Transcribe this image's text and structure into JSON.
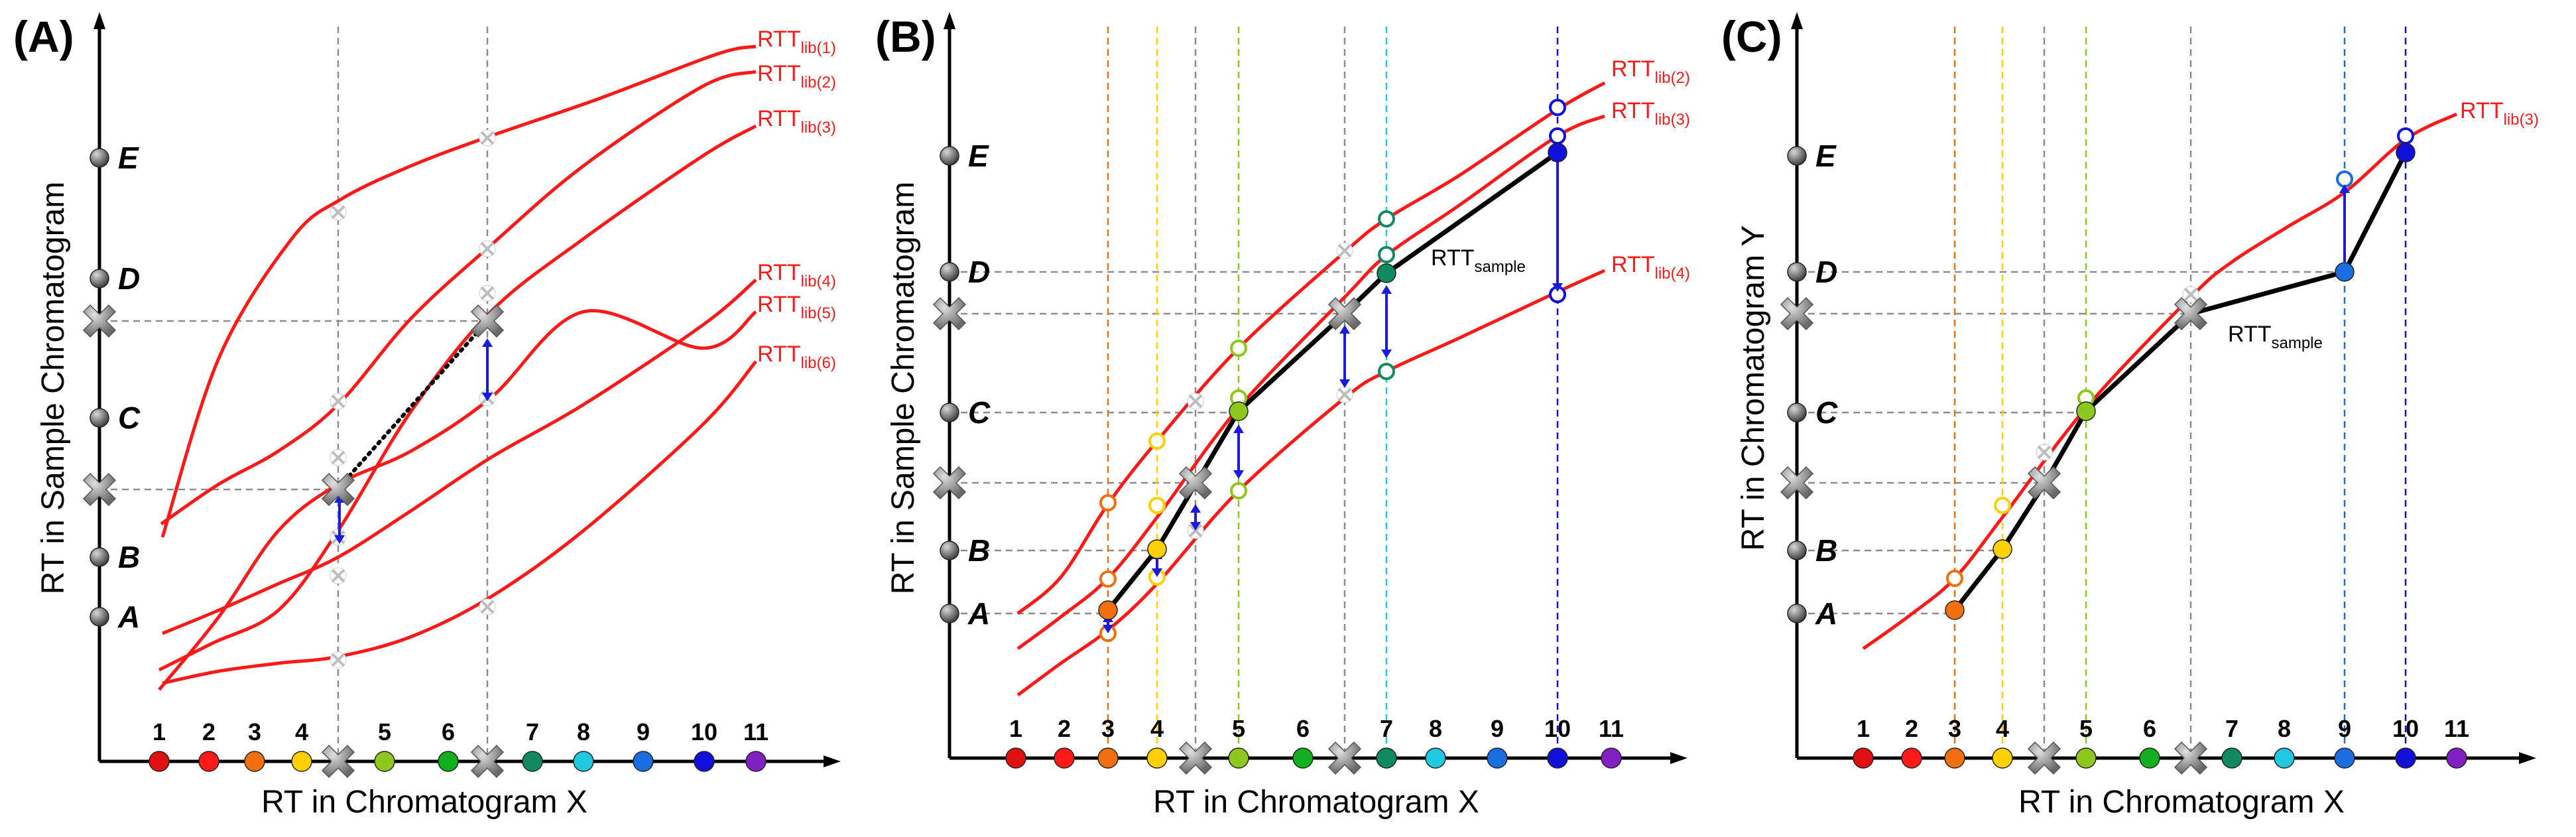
{
  "panels": [
    {
      "id": "A",
      "label": "(A)",
      "xlabel": "RT in Chromatogram X",
      "ylabel": "RT in Sample Chromatogram",
      "y_letters": [
        "A",
        "B",
        "C",
        "D",
        "E"
      ],
      "x_numbers": [
        "1",
        "2",
        "3",
        "4",
        "5",
        "6",
        "7",
        "8",
        "9",
        "10",
        "11"
      ],
      "curves": [
        {
          "base": "RTT",
          "sub": "lib(1)"
        },
        {
          "base": "RTT",
          "sub": "lib(2)"
        },
        {
          "base": "RTT",
          "sub": "lib(3)"
        },
        {
          "base": "RTT",
          "sub": "lib(4)"
        },
        {
          "base": "RTT",
          "sub": "lib(5)"
        },
        {
          "base": "RTT",
          "sub": "lib(6)"
        }
      ]
    },
    {
      "id": "B",
      "label": "(B)",
      "xlabel": "RT in Chromatogram X",
      "ylabel": "RT in Sample Chromatogram",
      "y_letters": [
        "A",
        "B",
        "C",
        "D",
        "E"
      ],
      "x_numbers": [
        "1",
        "2",
        "3",
        "4",
        "5",
        "6",
        "7",
        "8",
        "9",
        "10",
        "11"
      ],
      "curves": [
        {
          "base": "RTT",
          "sub": "lib(2)"
        },
        {
          "base": "RTT",
          "sub": "lib(3)"
        },
        {
          "base": "RTT",
          "sub": "lib(4)"
        }
      ],
      "sample_curve": {
        "base": "RTT",
        "sub": "sample"
      }
    },
    {
      "id": "C",
      "label": "(C)",
      "xlabel": "RT in Chromatogram X",
      "ylabel": "RT in Chromatogram Y",
      "y_letters": [
        "A",
        "B",
        "C",
        "D",
        "E"
      ],
      "x_numbers": [
        "1",
        "2",
        "3",
        "4",
        "5",
        "6",
        "7",
        "8",
        "9",
        "10",
        "11"
      ],
      "curves": [
        {
          "base": "RTT",
          "sub": "lib(3)"
        }
      ],
      "sample_curve": {
        "base": "RTT",
        "sub": "sample"
      }
    }
  ],
  "colors": {
    "dot_colors": [
      "#e01010",
      "#ff1a1a",
      "#f07010",
      "#ffd000",
      "#8cc81e",
      "#10b020",
      "#108a60",
      "#20c8e0",
      "#1a6ee0",
      "#1010d8",
      "#8020c0"
    ],
    "curve": "#ff1a1a",
    "arrow": "#1a1ae0",
    "sample": "#000000",
    "x_marker": "#8c8c8c"
  }
}
